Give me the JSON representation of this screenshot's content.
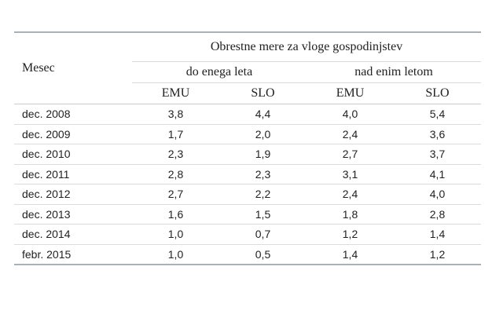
{
  "table": {
    "header": {
      "row_label": "Mesec",
      "group_title": "Obrestne mere za vloge gospodinjstev",
      "subgroups": [
        "do enega leta",
        "nad enim letom"
      ],
      "columns": [
        "EMU",
        "SLO",
        "EMU",
        "SLO"
      ]
    },
    "rows": [
      {
        "month": "dec. 2008",
        "values": [
          "3,8",
          "4,4",
          "4,0",
          "5,4"
        ]
      },
      {
        "month": "dec. 2009",
        "values": [
          "1,7",
          "2,0",
          "2,4",
          "3,6"
        ]
      },
      {
        "month": "dec. 2010",
        "values": [
          "2,3",
          "1,9",
          "2,7",
          "3,7"
        ]
      },
      {
        "month": "dec. 2011",
        "values": [
          "2,8",
          "2,3",
          "3,1",
          "4,1"
        ]
      },
      {
        "month": "dec. 2012",
        "values": [
          "2,7",
          "2,2",
          "2,4",
          "4,0"
        ]
      },
      {
        "month": "dec. 2013",
        "values": [
          "1,6",
          "1,5",
          "1,8",
          "2,8"
        ]
      },
      {
        "month": "dec. 2014",
        "values": [
          "1,0",
          "0,7",
          "1,2",
          "1,4"
        ]
      },
      {
        "month": "febr. 2015",
        "values": [
          "1,0",
          "0,5",
          "1,4",
          "1,2"
        ]
      }
    ]
  }
}
